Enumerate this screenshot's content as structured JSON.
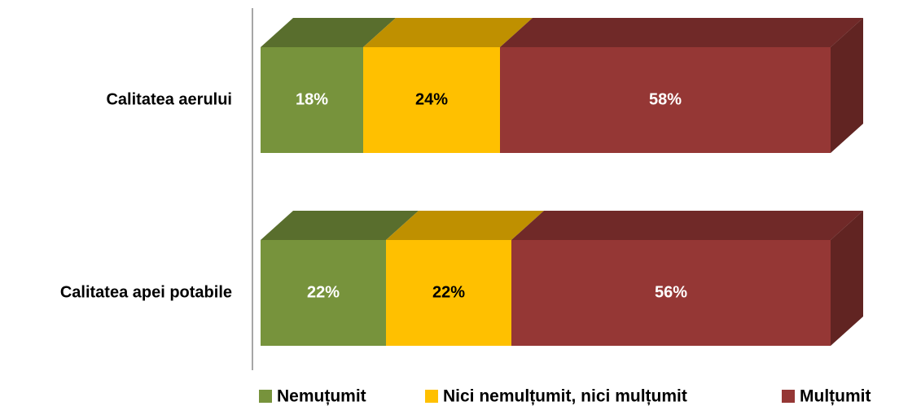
{
  "chart_data": {
    "type": "bar3d_stacked_horizontal",
    "categories": [
      "Calitatea aerului",
      "Calitatea apei potabile"
    ],
    "series": [
      {
        "name": "Nemuțumit",
        "color": "#77933c",
        "values": [
          18,
          22
        ],
        "value_labels": [
          "18%",
          "22%"
        ]
      },
      {
        "name": "Nici nemulțumit, nici mulțumit",
        "color": "#ffc000",
        "values": [
          24,
          22
        ],
        "value_labels": [
          "24%",
          "22%"
        ]
      },
      {
        "name": "Mulțumit",
        "color": "#953735",
        "values": [
          58,
          56
        ],
        "value_labels": [
          "58%",
          "56%"
        ]
      }
    ],
    "xlim": [
      0,
      100
    ],
    "legend": "bottom"
  }
}
